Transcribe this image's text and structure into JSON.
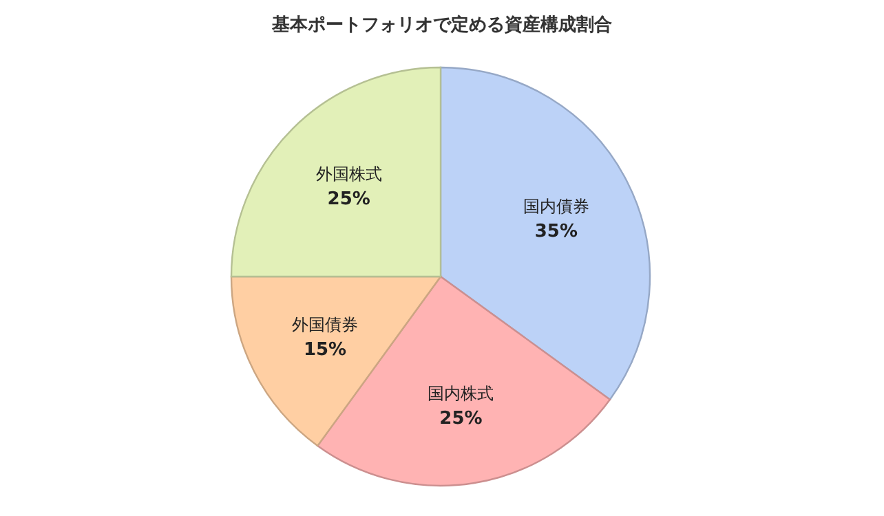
{
  "chart_data": {
    "type": "pie",
    "title": "基本ポートフォリオで定める資産構成割合",
    "categories": [
      "国内債券",
      "国内株式",
      "外国債券",
      "外国株式"
    ],
    "values": [
      35,
      25,
      15,
      25
    ],
    "value_labels": [
      "35%",
      "25%",
      "15%",
      "25%"
    ],
    "colors": [
      "#bcd2f7",
      "#ffb3b3",
      "#ffcfa3",
      "#e2f0b8"
    ],
    "legend": false
  }
}
